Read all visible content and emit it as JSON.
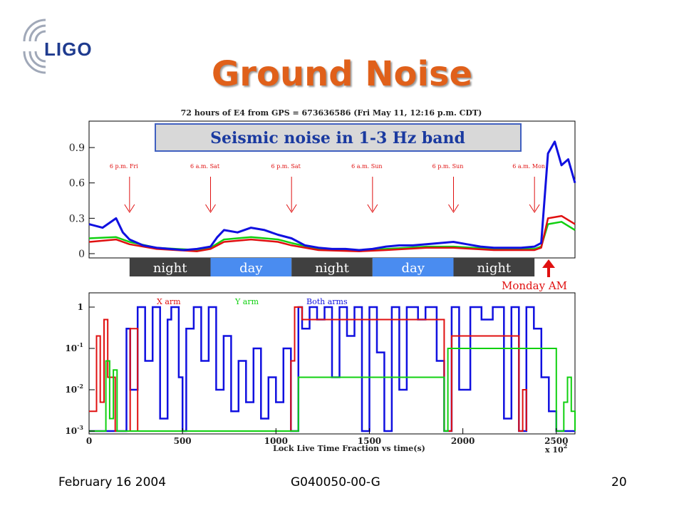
{
  "logo": {
    "text": "LIGO"
  },
  "title": "Ground Noise",
  "footer": {
    "date": "February 16 2004",
    "doc_id": "G040050-00-G",
    "page": "20"
  },
  "colors": {
    "title": "#e0601a",
    "blue": "#1010e0",
    "red": "#e01010",
    "green": "#10d010",
    "night": "#404040",
    "day": "#4a8cf0",
    "callout": "#e01010"
  },
  "chart_data": [
    {
      "type": "line",
      "title": "72 hours of E4 from GPS = 673636586 (Fri May 11, 12:16 p.m. CDT)",
      "annotation": "Seismic noise in 1-3 Hz band",
      "y_ticks": [
        "0",
        "0.3",
        "0.6",
        "0.9"
      ],
      "ylim": [
        0,
        1.1
      ],
      "x_range_hours": [
        0,
        72
      ],
      "markers": [
        {
          "label": "6 p.m. Fri",
          "hour": 6
        },
        {
          "label": "6 a.m. Sat",
          "hour": 18
        },
        {
          "label": "6 p.m. Sat",
          "hour": 30
        },
        {
          "label": "6 a.m. Sun",
          "hour": 42
        },
        {
          "label": "6 p.m. Sun",
          "hour": 54
        },
        {
          "label": "6 a.m. Mon",
          "hour": 66
        }
      ],
      "day_night_bands": [
        {
          "label": "night",
          "start": 6,
          "end": 18
        },
        {
          "label": "day",
          "start": 18,
          "end": 30
        },
        {
          "label": "night",
          "start": 30,
          "end": 42
        },
        {
          "label": "day",
          "start": 42,
          "end": 54
        },
        {
          "label": "night",
          "start": 54,
          "end": 66
        }
      ],
      "callout": "Monday AM",
      "series": [
        {
          "color": "blue",
          "x": [
            0,
            2,
            4,
            5,
            6,
            8,
            10,
            12,
            14,
            16,
            18,
            19,
            20,
            22,
            24,
            26,
            28,
            30,
            32,
            34,
            36,
            38,
            40,
            42,
            44,
            46,
            48,
            50,
            52,
            54,
            56,
            58,
            60,
            62,
            64,
            66,
            67,
            68,
            69,
            70,
            71,
            72
          ],
          "values": [
            0.25,
            0.22,
            0.3,
            0.18,
            0.12,
            0.07,
            0.05,
            0.04,
            0.03,
            0.04,
            0.06,
            0.14,
            0.2,
            0.18,
            0.22,
            0.2,
            0.16,
            0.13,
            0.07,
            0.05,
            0.04,
            0.04,
            0.03,
            0.04,
            0.06,
            0.07,
            0.07,
            0.08,
            0.09,
            0.1,
            0.08,
            0.06,
            0.05,
            0.05,
            0.05,
            0.06,
            0.09,
            0.85,
            0.95,
            0.75,
            0.8,
            0.6
          ]
        },
        {
          "color": "red",
          "x": [
            0,
            4,
            6,
            10,
            16,
            18,
            20,
            24,
            28,
            30,
            34,
            40,
            44,
            50,
            54,
            60,
            66,
            67,
            68,
            70,
            72
          ],
          "values": [
            0.1,
            0.12,
            0.08,
            0.04,
            0.02,
            0.04,
            0.1,
            0.12,
            0.1,
            0.07,
            0.03,
            0.02,
            0.03,
            0.05,
            0.05,
            0.03,
            0.03,
            0.05,
            0.3,
            0.32,
            0.25
          ]
        },
        {
          "color": "green",
          "x": [
            0,
            4,
            6,
            10,
            16,
            18,
            20,
            24,
            28,
            30,
            34,
            40,
            44,
            50,
            54,
            60,
            66,
            67,
            68,
            70,
            72
          ],
          "values": [
            0.13,
            0.14,
            0.1,
            0.05,
            0.03,
            0.05,
            0.12,
            0.14,
            0.12,
            0.09,
            0.04,
            0.03,
            0.04,
            0.06,
            0.06,
            0.04,
            0.04,
            0.06,
            0.25,
            0.27,
            0.2
          ]
        }
      ]
    },
    {
      "type": "line",
      "xlabel": "Lock Live Time Fraction vs time(s)",
      "x_multiplier": "x 10",
      "x_multiplier_exp": "2",
      "x_ticks": [
        "0",
        "500",
        "1000",
        "1500",
        "2000",
        "2500"
      ],
      "xlim": [
        0,
        2600
      ],
      "y_scale": "log",
      "y_ticks": [
        {
          "base": "10",
          "exp": "-3",
          "value": 0.001
        },
        {
          "base": "10",
          "exp": "-2",
          "value": 0.01
        },
        {
          "base": "10",
          "exp": "-1",
          "value": 0.1
        },
        {
          "base": "1",
          "exp": "",
          "value": 1
        }
      ],
      "legend": [
        "X arm",
        "Y arm",
        "Both arms"
      ],
      "series": [
        {
          "name": "Both arms",
          "color": "blue",
          "x": [
            0,
            180,
            200,
            220,
            260,
            300,
            340,
            380,
            420,
            440,
            480,
            500,
            520,
            560,
            600,
            640,
            680,
            720,
            760,
            800,
            840,
            880,
            920,
            960,
            1000,
            1040,
            1080,
            1100,
            1120,
            1140,
            1180,
            1220,
            1260,
            1300,
            1340,
            1380,
            1420,
            1460,
            1500,
            1540,
            1580,
            1620,
            1660,
            1700,
            1760,
            1800,
            1860,
            1900,
            1940,
            1980,
            2040,
            2100,
            2160,
            2220,
            2260,
            2300,
            2340,
            2380,
            2420,
            2460,
            2500,
            2600
          ],
          "values": [
            0.001,
            0.001,
            0.3,
            0.01,
            1,
            0.05,
            1,
            0.002,
            0.5,
            1,
            0.02,
            0.001,
            0.3,
            1,
            0.05,
            1,
            0.01,
            0.2,
            0.003,
            0.05,
            0.005,
            0.1,
            0.002,
            0.02,
            0.005,
            0.1,
            0.001,
            0.001,
            1,
            0.3,
            1,
            0.5,
            1,
            0.02,
            1,
            0.2,
            1,
            0.001,
            1,
            0.08,
            0.001,
            1,
            0.01,
            1,
            0.5,
            1,
            0.05,
            0.001,
            1,
            0.01,
            1,
            0.5,
            1,
            0.002,
            1,
            0.001,
            1,
            0.3,
            0.02,
            0.003,
            0.001,
            0.001
          ]
        },
        {
          "name": "X arm",
          "color": "red",
          "x": [
            0,
            40,
            60,
            80,
            100,
            140,
            180,
            220,
            260,
            1000,
            1080,
            1100,
            1140,
            1900,
            1940,
            2300,
            2320,
            2340
          ],
          "values": [
            0.003,
            0.2,
            0.005,
            0.5,
            0.02,
            0.001,
            0.001,
            0.3,
            0.001,
            0.001,
            0.05,
            1,
            0.5,
            0.001,
            0.2,
            0.001,
            0.01,
            0.001
          ]
        },
        {
          "name": "Y arm",
          "color": "green",
          "x": [
            0,
            60,
            90,
            110,
            130,
            150,
            180,
            1100,
            1120,
            1900,
            1920,
            2500,
            2540,
            2560,
            2580,
            2600
          ],
          "values": [
            0.001,
            0.001,
            0.05,
            0.002,
            0.03,
            0.001,
            0.001,
            0.001,
            0.02,
            0.001,
            0.1,
            0.001,
            0.005,
            0.02,
            0.003,
            0.001
          ]
        }
      ]
    }
  ]
}
